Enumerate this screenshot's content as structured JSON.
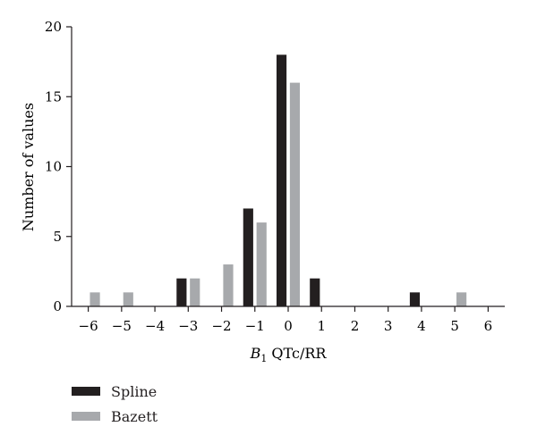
{
  "chart_data": {
    "type": "bar",
    "xlabel_italic": "B",
    "xlabel_sub": "1",
    "xlabel_rest": " QTc/RR",
    "ylabel": "Number of values",
    "xlim": [
      -6.5,
      6.5
    ],
    "ylim": [
      0,
      20
    ],
    "xticks": [
      -6,
      -5,
      -4,
      -3,
      -2,
      -1,
      0,
      1,
      2,
      3,
      4,
      5,
      6
    ],
    "xtick_labels": [
      "−6",
      "−5",
      "−4",
      "−3",
      "−2",
      "−1",
      "0",
      "1",
      "2",
      "3",
      "4",
      "5",
      "6"
    ],
    "yticks": [
      0,
      5,
      10,
      15,
      20
    ],
    "ytick_labels": [
      "0",
      "5",
      "10",
      "15",
      "20"
    ],
    "grid": false,
    "legend_position": "bottom-left",
    "series": [
      {
        "name": "Spline",
        "color": "#231f20",
        "x": [
          -3.2,
          -1.2,
          -0.2,
          0.8,
          3.8
        ],
        "values": [
          2,
          7,
          18,
          2,
          1
        ]
      },
      {
        "name": "Bazett",
        "color": "#a7a9ac",
        "x": [
          -5.8,
          -4.8,
          -2.8,
          -1.8,
          -0.8,
          0.2,
          5.2
        ],
        "values": [
          1,
          1,
          2,
          3,
          6,
          16,
          1
        ]
      }
    ]
  }
}
